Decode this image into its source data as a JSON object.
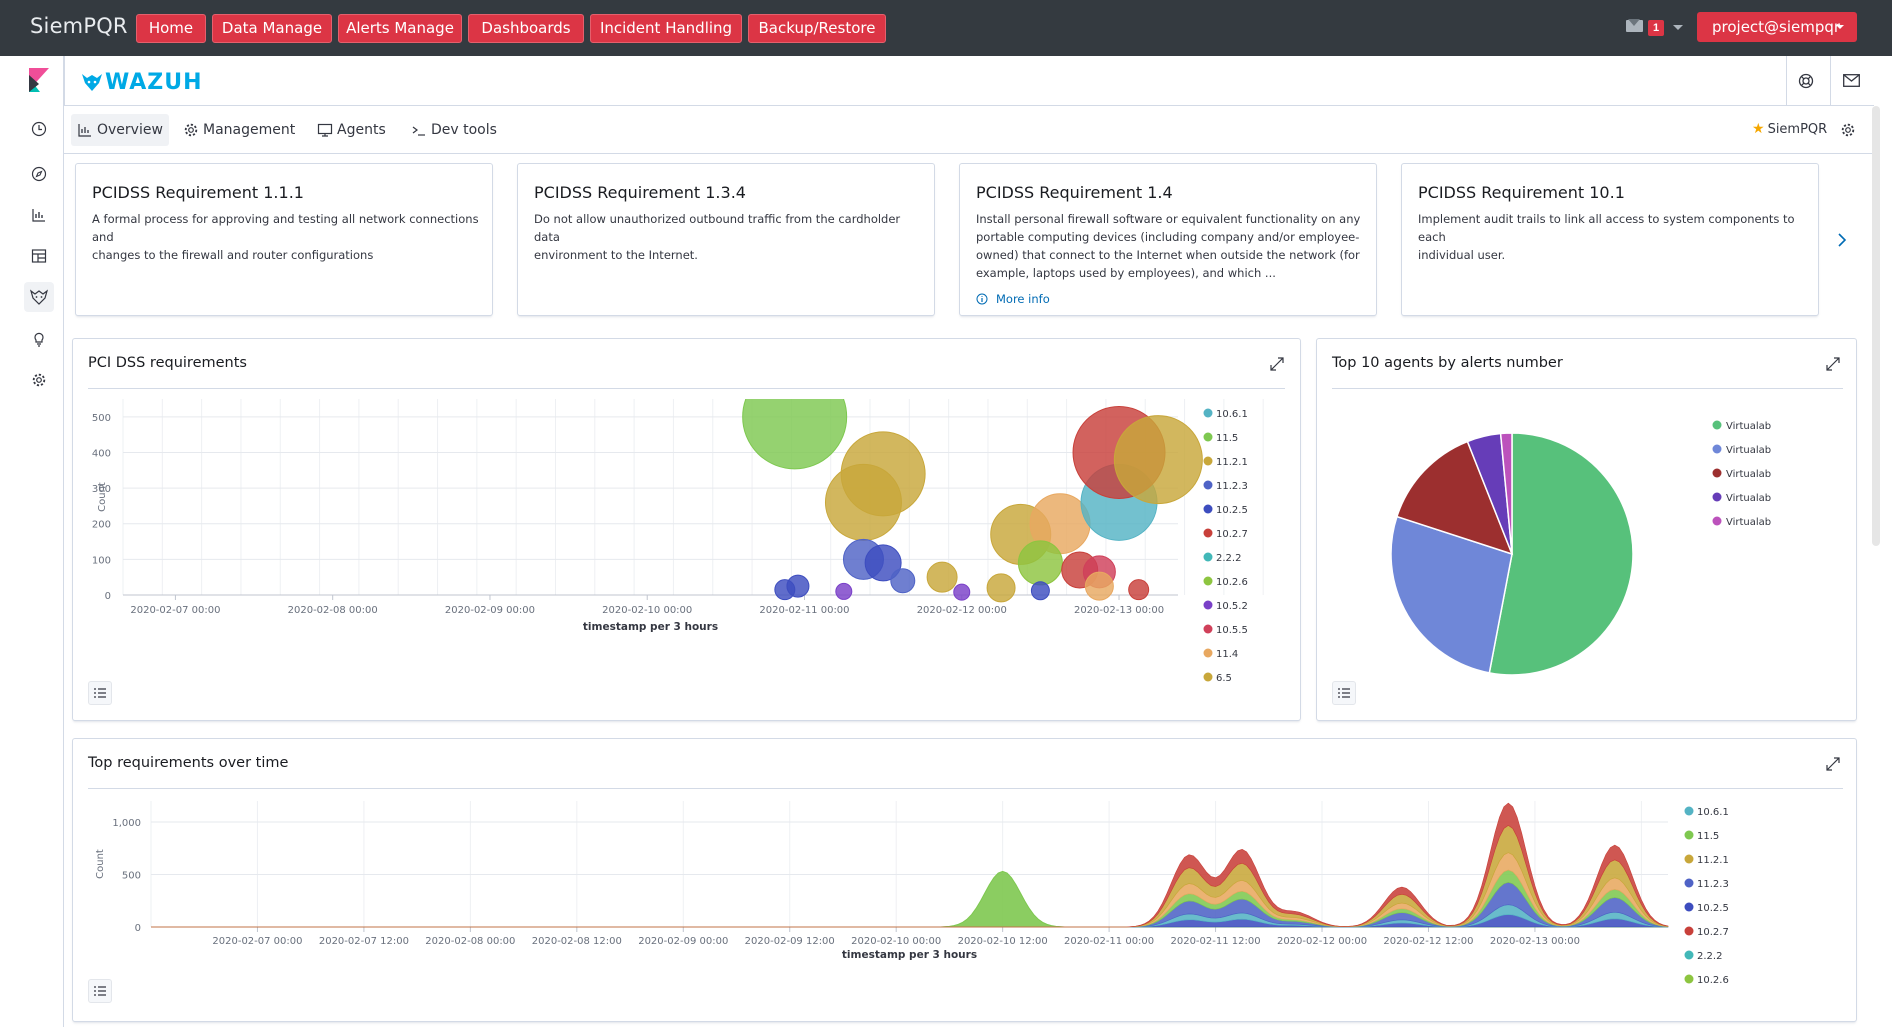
{
  "topbar": {
    "brand": "SiemPQR",
    "nav": [
      {
        "label": "Home"
      },
      {
        "label": "Data Manage"
      },
      {
        "label": "Alerts Manage"
      },
      {
        "label": "Dashboards"
      },
      {
        "label": "Incident Handling"
      },
      {
        "label": "Backup/Restore"
      }
    ],
    "mail_badge": "1",
    "user": "project@siempqr"
  },
  "app": {
    "logo_text": "WAZUH",
    "tabs": [
      {
        "label": "Overview",
        "icon": "chart-icon",
        "active": true
      },
      {
        "label": "Management",
        "icon": "gear-icon",
        "active": false
      },
      {
        "label": "Agents",
        "icon": "monitor-icon",
        "active": false
      },
      {
        "label": "Dev tools",
        "icon": "terminal-icon",
        "active": false
      }
    ],
    "favorite_label": "SiemPQR"
  },
  "requirements": [
    {
      "title": "PCIDSS Requirement 1.1.1",
      "desc_lines": [
        "A formal process for approving and testing all network connections and",
        "changes to the firewall and router configurations"
      ]
    },
    {
      "title": "PCIDSS Requirement 1.3.4",
      "desc_lines": [
        "Do not allow unauthorized outbound traffic from the cardholder data",
        "environment to the Internet."
      ]
    },
    {
      "title": "PCIDSS Requirement 1.4",
      "desc_lines": [
        "Install personal firewall software or equivalent functionality on any",
        "portable computing devices (including company and/or employee-",
        "owned) that connect to the Internet when outside the network (for",
        "example, laptops used by employees), and which ..."
      ],
      "more_info": "More info"
    },
    {
      "title": "PCIDSS Requirement 10.1",
      "desc_lines": [
        "Implement audit trails to link all access to system components to each",
        "individual user."
      ]
    }
  ],
  "panels": {
    "pci": {
      "title": "PCI DSS requirements"
    },
    "agents": {
      "title": "Top 10 agents by alerts number"
    },
    "overtime": {
      "title": "Top requirements over time"
    }
  },
  "colors": {
    "10.6.1": "#54b3c4",
    "11.5": "#7ec850",
    "11.2.1": "#c8a73a",
    "11.2.3": "#4f63c6",
    "10.2.5": "#3d4dbf",
    "10.2.7": "#c8403a",
    "2.2.2": "#42b8b8",
    "10.2.6": "#8dc540",
    "10.5.2": "#7a40c8",
    "10.5.5": "#d0405a",
    "11.4": "#e8a860",
    "6.5": "#c8a73a"
  },
  "chart_data": [
    {
      "type": "scatter",
      "title": "",
      "xlabel": "timestamp per 3 hours",
      "ylabel": "Count",
      "ylim": [
        0,
        550
      ],
      "yticks": [
        "0",
        "100",
        "200",
        "300",
        "400",
        "500"
      ],
      "xticks": [
        "2020-02-07 00:00",
        "2020-02-08 00:00",
        "2020-02-09 00:00",
        "2020-02-10 00:00",
        "2020-02-11 00:00",
        "2020-02-12 00:00",
        "2020-02-13 00:00"
      ],
      "legend": [
        "10.6.1",
        "11.5",
        "11.2.1",
        "11.2.3",
        "10.2.5",
        "10.2.7",
        "2.2.2",
        "10.2.6",
        "10.5.2",
        "10.5.5",
        "11.4",
        "6.5"
      ],
      "points": [
        {
          "series": "10.2.5",
          "x": "2020-02-10 21:00",
          "y": 15,
          "size": 10
        },
        {
          "series": "10.2.5",
          "x": "2020-02-10 23:00",
          "y": 25,
          "size": 11
        },
        {
          "series": "11.5",
          "x": "2020-02-10 22:30",
          "y": 500,
          "size": 52
        },
        {
          "series": "11.2.1",
          "x": "2020-02-11 12:00",
          "y": 340,
          "size": 42
        },
        {
          "series": "11.2.1",
          "x": "2020-02-11 09:00",
          "y": 260,
          "size": 38
        },
        {
          "series": "11.2.3",
          "x": "2020-02-11 09:00",
          "y": 100,
          "size": 20
        },
        {
          "series": "10.2.5",
          "x": "2020-02-11 12:00",
          "y": 90,
          "size": 18
        },
        {
          "series": "11.2.3",
          "x": "2020-02-11 15:00",
          "y": 40,
          "size": 12
        },
        {
          "series": "11.2.1",
          "x": "2020-02-11 21:00",
          "y": 50,
          "size": 15
        },
        {
          "series": "10.5.2",
          "x": "2020-02-11 06:00",
          "y": 10,
          "size": 8
        },
        {
          "series": "11.2.1",
          "x": "2020-02-12 09:00",
          "y": 170,
          "size": 30
        },
        {
          "series": "11.4",
          "x": "2020-02-12 15:00",
          "y": 200,
          "size": 30
        },
        {
          "series": "10.2.6",
          "x": "2020-02-12 12:00",
          "y": 90,
          "size": 22
        },
        {
          "series": "10.2.7",
          "x": "2020-02-12 18:00",
          "y": 70,
          "size": 18
        },
        {
          "series": "10.5.5",
          "x": "2020-02-12 21:00",
          "y": 65,
          "size": 16
        },
        {
          "series": "10.6.1",
          "x": "2020-02-13 00:00",
          "y": 260,
          "size": 38
        },
        {
          "series": "10.2.7",
          "x": "2020-02-13 00:00",
          "y": 400,
          "size": 46
        },
        {
          "series": "11.2.1",
          "x": "2020-02-13 06:00",
          "y": 380,
          "size": 44
        },
        {
          "series": "10.2.7",
          "x": "2020-02-13 03:00",
          "y": 15,
          "size": 10
        },
        {
          "series": "11.2.1",
          "x": "2020-02-12 06:00",
          "y": 20,
          "size": 14
        },
        {
          "series": "11.4",
          "x": "2020-02-12 21:00",
          "y": 25,
          "size": 14
        },
        {
          "series": "10.5.2",
          "x": "2020-02-12 00:00",
          "y": 8,
          "size": 8
        },
        {
          "series": "10.2.5",
          "x": "2020-02-12 12:00",
          "y": 12,
          "size": 9
        }
      ]
    },
    {
      "type": "pie",
      "title": "",
      "legend": [
        "Virtualab",
        "Virtualab",
        "Virtualab",
        "Virtualab",
        "Virtualab"
      ],
      "slices": [
        {
          "label": "Virtualab",
          "value": 53,
          "color": "#57c17b"
        },
        {
          "label": "Virtualab",
          "value": 27,
          "color": "#6f87d8"
        },
        {
          "label": "Virtualab",
          "value": 14,
          "color": "#9c2f2f"
        },
        {
          "label": "Virtualab",
          "value": 4.5,
          "color": "#663db8"
        },
        {
          "label": "Virtualab",
          "value": 1.5,
          "color": "#bc52bc"
        }
      ]
    },
    {
      "type": "area",
      "title": "",
      "xlabel": "timestamp per 3 hours",
      "ylabel": "Count",
      "ylim": [
        0,
        1200
      ],
      "yticks": [
        "0",
        "500",
        "1,000"
      ],
      "xticks": [
        "2020-02-07 00:00",
        "2020-02-07 12:00",
        "2020-02-08 00:00",
        "2020-02-08 12:00",
        "2020-02-09 00:00",
        "2020-02-09 12:00",
        "2020-02-10 00:00",
        "2020-02-10 12:00",
        "2020-02-11 00:00",
        "2020-02-11 12:00",
        "2020-02-12 00:00",
        "2020-02-12 12:00",
        "2020-02-13 00:00"
      ],
      "legend": [
        "10.6.1",
        "11.5",
        "11.2.1",
        "11.2.3",
        "10.2.5",
        "10.2.7",
        "2.2.2",
        "10.2.6"
      ],
      "peaks": [
        {
          "x": "2020-02-10 12:00",
          "total": 530,
          "series": "11.5"
        },
        {
          "x": "2020-02-11 09:00",
          "total": 680
        },
        {
          "x": "2020-02-11 15:00",
          "total": 730
        },
        {
          "x": "2020-02-11 21:00",
          "total": 140
        },
        {
          "x": "2020-02-12 09:00",
          "total": 380
        },
        {
          "x": "2020-02-12 21:00",
          "total": 1180
        },
        {
          "x": "2020-02-13 09:00",
          "total": 780
        }
      ]
    }
  ]
}
